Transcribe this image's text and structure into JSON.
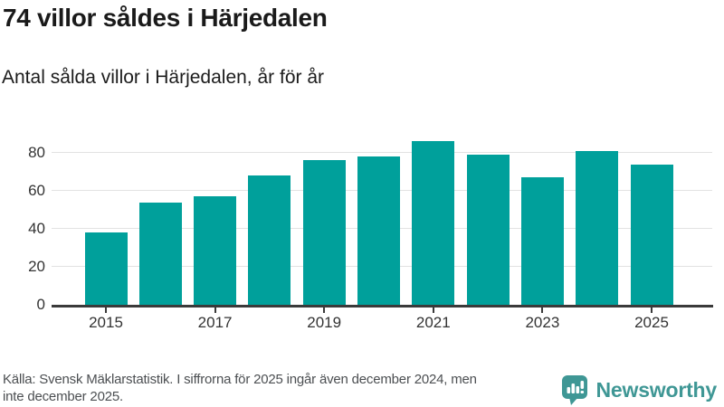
{
  "header": {
    "title": "74 villor såldes i Härjedalen",
    "subtitle": "Antal sålda villor i Härjedalen, år för år"
  },
  "chart_data": {
    "type": "bar",
    "categories": [
      2015,
      2016,
      2017,
      2018,
      2019,
      2020,
      2021,
      2022,
      2023,
      2024,
      2025
    ],
    "values": [
      38,
      54,
      57,
      68,
      76,
      78,
      86,
      79,
      67,
      81,
      74
    ],
    "title": "74 villor såldes i Härjedalen",
    "subtitle": "Antal sålda villor i Härjedalen, år för år",
    "xlabel": "",
    "ylabel": "",
    "ylim": [
      0,
      90
    ],
    "yticks": [
      0,
      20,
      40,
      60,
      80
    ],
    "xtick_labels": [
      "2015",
      "2017",
      "2019",
      "2021",
      "2023",
      "2025"
    ],
    "grid": true,
    "legend": "none",
    "bar_color": "#00a09b",
    "axis_color": "#3a3a3a",
    "gridline_color": "#e2e2e2",
    "tick_label_color": "#333333"
  },
  "footer": {
    "source_lines": [
      "Källa: Svensk Mäklarstatistik. I siffrorna för 2025 ingår även december 2024, men",
      "inte december 2025."
    ],
    "brand": "Newsworthy",
    "brand_color": "#3f9795"
  }
}
